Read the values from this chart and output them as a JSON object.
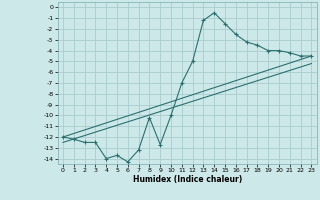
{
  "title": "",
  "xlabel": "Humidex (Indice chaleur)",
  "bg_color": "#cde8e8",
  "grid_color": "#aacccc",
  "line_color": "#2a7070",
  "ylim": [
    -14.5,
    0.5
  ],
  "xlim": [
    -0.5,
    23.5
  ],
  "yticks": [
    0,
    -1,
    -2,
    -3,
    -4,
    -5,
    -6,
    -7,
    -8,
    -9,
    -10,
    -11,
    -12,
    -13,
    -14
  ],
  "xticks": [
    0,
    1,
    2,
    3,
    4,
    5,
    6,
    7,
    8,
    9,
    10,
    11,
    12,
    13,
    14,
    15,
    16,
    17,
    18,
    19,
    20,
    21,
    22,
    23
  ],
  "line1_x": [
    0,
    1,
    2,
    3,
    4,
    5,
    6,
    7,
    8,
    9,
    10,
    11,
    12,
    13,
    14,
    15,
    16,
    17,
    18,
    19,
    20,
    21,
    22,
    23
  ],
  "line1_y": [
    -12.0,
    -12.2,
    -12.5,
    -12.5,
    -14.0,
    -13.7,
    -14.3,
    -13.2,
    -10.2,
    -12.7,
    -10.0,
    -7.0,
    -5.0,
    -1.2,
    -0.5,
    -1.5,
    -2.5,
    -3.2,
    -3.5,
    -4.0,
    -4.0,
    -4.2,
    -4.5,
    -4.5
  ],
  "line2_x": [
    0,
    23
  ],
  "line2_y": [
    -12.0,
    -4.5
  ],
  "line3_x": [
    0,
    23
  ],
  "line3_y": [
    -12.5,
    -5.2
  ]
}
